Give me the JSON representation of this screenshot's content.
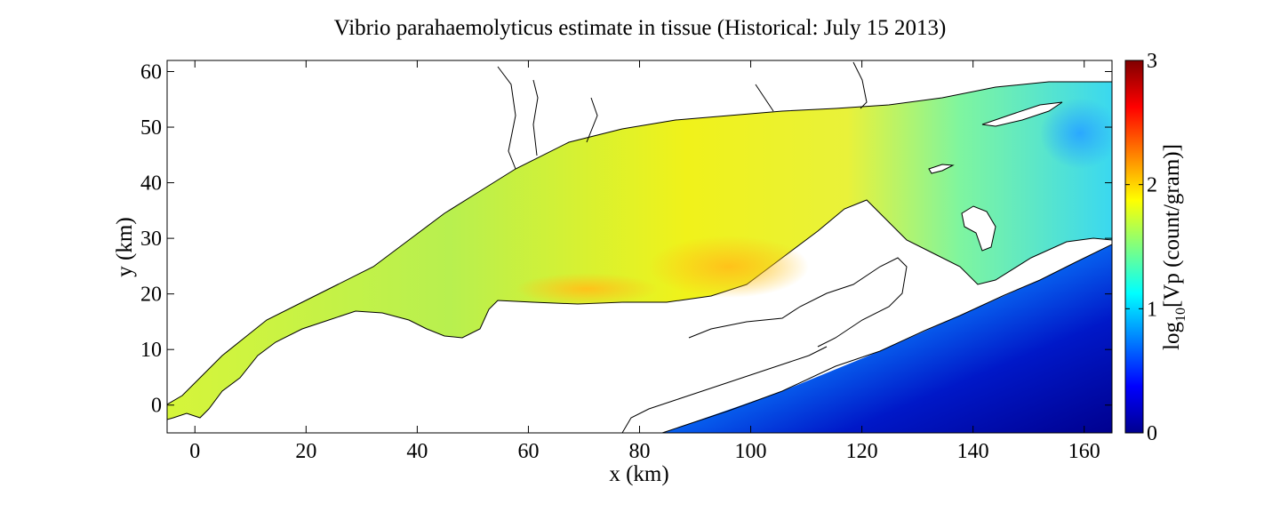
{
  "title": "Vibrio parahaemolyticus estimate in tissue (Historical: July 15 2013)",
  "map": {
    "xlabel": "x (km)",
    "ylabel": "y (km)",
    "xlim": [
      -5,
      165
    ],
    "ylim": [
      -5,
      62
    ],
    "xticks": [
      "0",
      "20",
      "40",
      "60",
      "80",
      "100",
      "120",
      "140",
      "160"
    ],
    "yticks": [
      "0",
      "10",
      "20",
      "30",
      "40",
      "50",
      "60"
    ],
    "xtick_values": [
      0,
      20,
      40,
      60,
      80,
      100,
      120,
      140,
      160
    ],
    "ytick_values": [
      0,
      10,
      20,
      30,
      40,
      50,
      60
    ],
    "colormap": "jet"
  },
  "colorbar": {
    "label_prefix": "log",
    "label_sub": "10",
    "label_suffix": "[Vp (count/gram)]",
    "range": [
      0,
      3
    ],
    "ticks": [
      "0",
      "1",
      "2",
      "3"
    ],
    "tick_values": [
      0,
      1,
      2,
      3
    ]
  }
}
